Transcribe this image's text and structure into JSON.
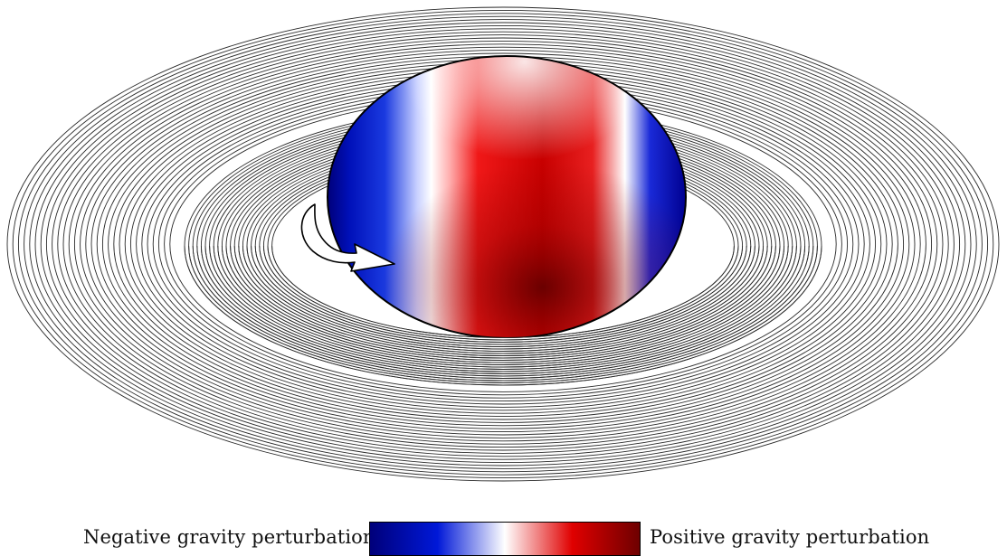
{
  "legend": {
    "negative_label": "Negative gravity perturbation",
    "positive_label": "Positive gravity perturbation",
    "colormap": [
      "#00007a",
      "#0018d8",
      "#ffffff",
      "#e00000",
      "#6e0000"
    ]
  },
  "icons": {
    "rotation_arrow": "curved-rotation-arrow"
  }
}
